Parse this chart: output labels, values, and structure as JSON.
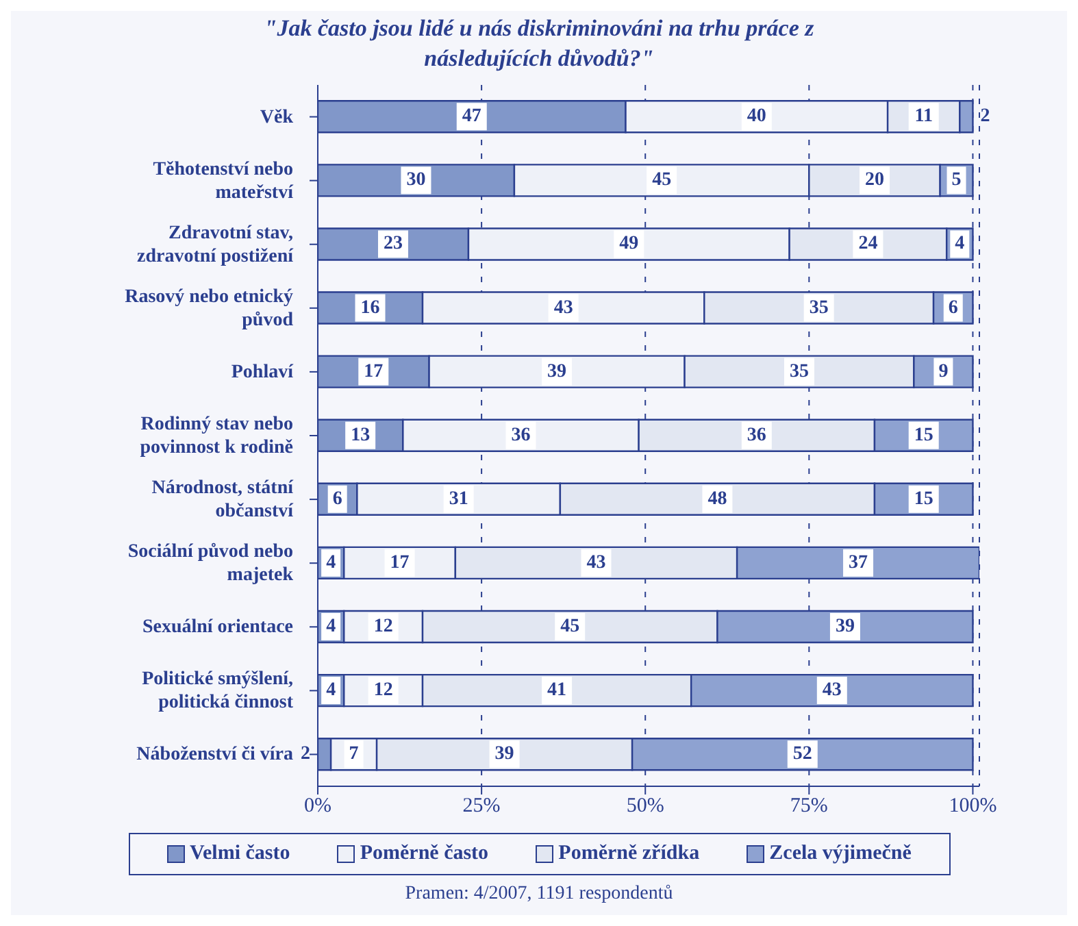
{
  "chart_data": {
    "type": "bar",
    "orientation": "horizontal",
    "stacked": true,
    "title": "\"Jak často jsou lidé u nás diskriminováni na trhu práce z následujících důvodů?\"",
    "categories": [
      "Věk",
      "Těhotenství nebo mateřství",
      "Zdravotní stav, zdravotní postižení",
      "Rasový nebo etnický původ",
      "Pohlaví",
      "Rodinný stav nebo povinnost k rodině",
      "Národnost, státní občanství",
      "Sociální původ nebo majetek",
      "Sexuální orientace",
      "Politické smýšlení, politická činnost",
      "Náboženství či víra"
    ],
    "series": [
      {
        "name": "Velmi často",
        "color": "#8197c9",
        "values": [
          47,
          30,
          23,
          16,
          17,
          13,
          6,
          4,
          4,
          4,
          2
        ]
      },
      {
        "name": "Poměrně často",
        "color": "#eef1f8",
        "values": [
          40,
          45,
          49,
          43,
          39,
          36,
          31,
          17,
          12,
          12,
          7
        ]
      },
      {
        "name": "Poměrně zřídka",
        "color": "#e2e7f2",
        "values": [
          11,
          20,
          24,
          35,
          35,
          36,
          48,
          43,
          45,
          41,
          39
        ]
      },
      {
        "name": "Zcela výjimečně",
        "color": "#8ea2d1",
        "values": [
          2,
          5,
          4,
          6,
          9,
          15,
          15,
          37,
          39,
          43,
          52
        ]
      }
    ],
    "xlim": [
      0,
      101
    ],
    "xticks": [
      {
        "value": 0,
        "label": "0%"
      },
      {
        "value": 25,
        "label": "25%"
      },
      {
        "value": 50,
        "label": "50%"
      },
      {
        "value": 75,
        "label": "75%"
      },
      {
        "value": 100,
        "label": "100%"
      }
    ],
    "data_labels": true,
    "grid": "x",
    "legend": "bottom",
    "annotations": [
      "Pramen: 4/2007, 1191 respondentů"
    ]
  }
}
